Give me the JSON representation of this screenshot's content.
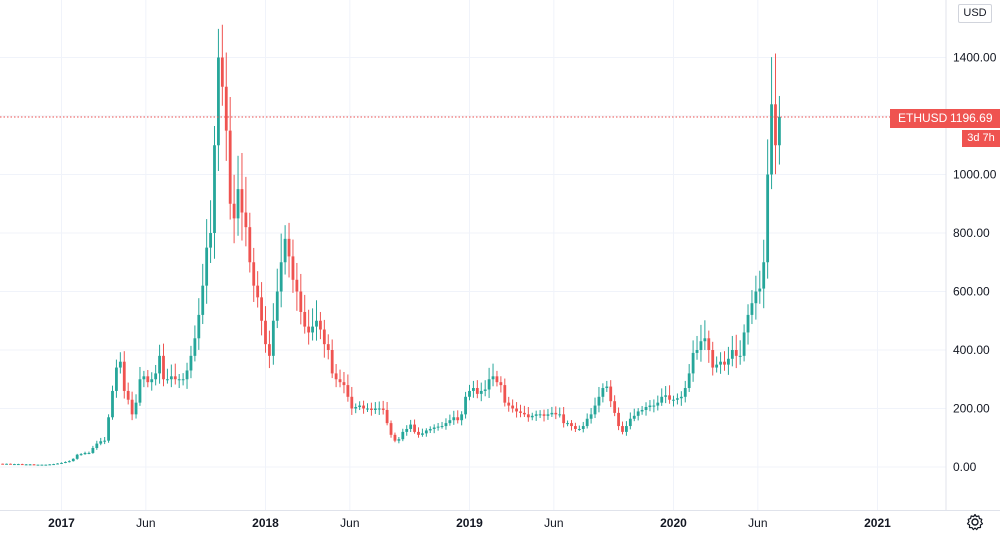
{
  "symbol": "ETHUSD",
  "currency": "USD",
  "last_price": "1196.69",
  "countdown": "3d 7h",
  "colors": {
    "up": "#26a69a",
    "down": "#ef5350",
    "grid": "#f0f3fa",
    "axis": "#e0e3eb",
    "text": "#131722"
  },
  "icons": {
    "settings": "gear-icon"
  },
  "chart_data": {
    "type": "candlestick",
    "interval": "weekly",
    "y_ticks": [
      "0.00",
      "200.00",
      "400.00",
      "600.00",
      "800.00",
      "1000.00",
      "1200.00",
      "1400.00"
    ],
    "ylim": [
      -140,
      1490
    ],
    "x_ticks": [
      {
        "label": "2017",
        "bold": true,
        "week": 0
      },
      {
        "label": "Jun",
        "bold": false,
        "week": 21.5
      },
      {
        "label": "2018",
        "bold": true,
        "week": 52
      },
      {
        "label": "Jun",
        "bold": false,
        "week": 73.5
      },
      {
        "label": "2019",
        "bold": true,
        "week": 104
      },
      {
        "label": "Jun",
        "bold": false,
        "week": 125.5
      },
      {
        "label": "2020",
        "bold": true,
        "week": 156
      },
      {
        "label": "Jun",
        "bold": false,
        "week": 177.5
      },
      {
        "label": "2021",
        "bold": true,
        "week": 208
      }
    ],
    "closes": [
      11,
      11,
      10,
      10,
      10,
      9,
      9,
      9,
      8,
      8,
      8,
      8,
      9,
      10,
      12,
      14,
      17,
      20,
      28,
      42,
      44,
      48,
      48,
      65,
      80,
      88,
      90,
      170,
      260,
      340,
      360,
      260,
      230,
      180,
      220,
      300,
      310,
      290,
      300,
      320,
      380,
      300,
      300,
      310,
      300,
      300,
      300,
      330,
      380,
      440,
      520,
      620,
      750,
      800,
      1100,
      1400,
      1300,
      1150,
      900,
      850,
      950,
      870,
      820,
      700,
      620,
      580,
      500,
      420,
      380,
      500,
      600,
      700,
      780,
      720,
      640,
      600,
      530,
      480,
      460,
      480,
      500,
      470,
      420,
      400,
      320,
      300,
      290,
      280,
      240,
      200,
      205,
      210,
      200,
      200,
      195,
      200,
      200,
      195,
      150,
      110,
      90,
      95,
      120,
      130,
      145,
      120,
      110,
      115,
      125,
      130,
      135,
      138,
      140,
      150,
      160,
      170,
      160,
      180,
      240,
      260,
      270,
      250,
      260,
      265,
      300,
      310,
      290,
      280,
      220,
      210,
      200,
      190,
      185,
      180,
      170,
      175,
      180,
      180,
      175,
      180,
      185,
      180,
      180,
      150,
      150,
      140,
      130,
      130,
      140,
      165,
      180,
      210,
      240,
      270,
      275,
      225,
      185,
      140,
      120,
      140,
      165,
      175,
      190,
      195,
      205,
      210,
      210,
      220,
      240,
      245,
      230,
      230,
      235,
      240,
      270,
      320,
      390,
      400,
      430,
      440,
      400,
      340,
      350,
      360,
      350,
      370,
      400,
      380,
      380,
      460,
      520,
      560,
      600,
      610,
      700,
      1000,
      1240,
      1100,
      1196.69
    ]
  }
}
